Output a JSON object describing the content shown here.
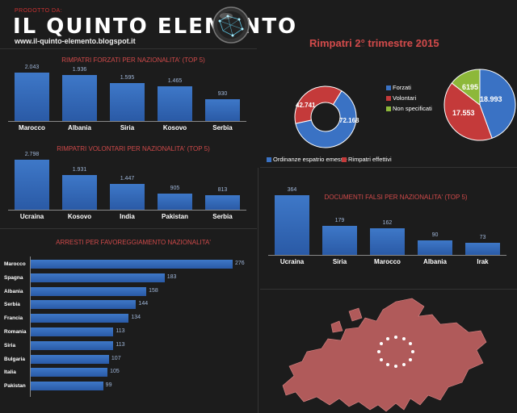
{
  "header": {
    "produced_by": "PRODOTTO DA:",
    "logo_text": "IL QUINTO ELEMENTO",
    "url": "www.il-quinto-elemento.blogspot.it"
  },
  "chart_data": [
    {
      "type": "bar",
      "title": "Rimpatri forzati per nazionalita' (top 5)",
      "categories": [
        "Marocco",
        "Albania",
        "Siria",
        "Kosovo",
        "Serbia"
      ],
      "values": [
        2043,
        1936,
        1595,
        1465,
        930
      ],
      "value_labels": [
        "2.043",
        "1.936",
        "1.595",
        "1.465",
        "930"
      ]
    },
    {
      "type": "bar",
      "title": "Rimpatri volontari per nazionalita' (top 5)",
      "categories": [
        "Ucraina",
        "Kosovo",
        "India",
        "Pakistan",
        "Serbia"
      ],
      "values": [
        2798,
        1931,
        1447,
        905,
        813
      ],
      "value_labels": [
        "2.798",
        "1.931",
        "1.447",
        "905",
        "813"
      ]
    },
    {
      "type": "bar",
      "orientation": "horizontal",
      "title": "Arresti per favoreggiamento nazionalita'",
      "categories": [
        "Marocco",
        "Spagna",
        "Albania",
        "Serbia",
        "Francia",
        "Romania",
        "Siria",
        "Bulgaria",
        "Italia",
        "Pakistan"
      ],
      "values": [
        276,
        183,
        158,
        144,
        134,
        113,
        113,
        107,
        105,
        99
      ]
    },
    {
      "type": "pie",
      "style": "donut",
      "title": "Rimpatri 2° trimestre 2015",
      "categories": [
        "Ordinanze espatrio emesse",
        "Rimpatri effettivi"
      ],
      "values": [
        72168,
        42741
      ],
      "value_labels": [
        "72.168",
        "42.741"
      ],
      "colors": [
        "#3a72c4",
        "#c43a3a"
      ],
      "legend": [
        "Ordinanze espatrio emesse",
        "Rimpatri effettivi"
      ]
    },
    {
      "type": "pie",
      "categories": [
        "Forzati",
        "Volontari",
        "Non specificati"
      ],
      "values": [
        18993,
        17553,
        6195
      ],
      "value_labels": [
        "18.993",
        "17.553",
        "6195"
      ],
      "colors": [
        "#3a72c4",
        "#c43a3a",
        "#8db83a"
      ],
      "legend": [
        "Forzati",
        "Volontari",
        "Non specificati"
      ]
    },
    {
      "type": "bar",
      "title": "Documenti falsi per nazionalita' (top 5)",
      "categories": [
        "Ucraina",
        "Siria",
        "Marocco",
        "Albania",
        "Irak"
      ],
      "values": [
        364,
        179,
        162,
        90,
        73
      ]
    }
  ],
  "colors": {
    "bar": "#3a72c4",
    "title": "#d04a4a",
    "map": "#b05a5a",
    "background": "#1c1c1c"
  }
}
